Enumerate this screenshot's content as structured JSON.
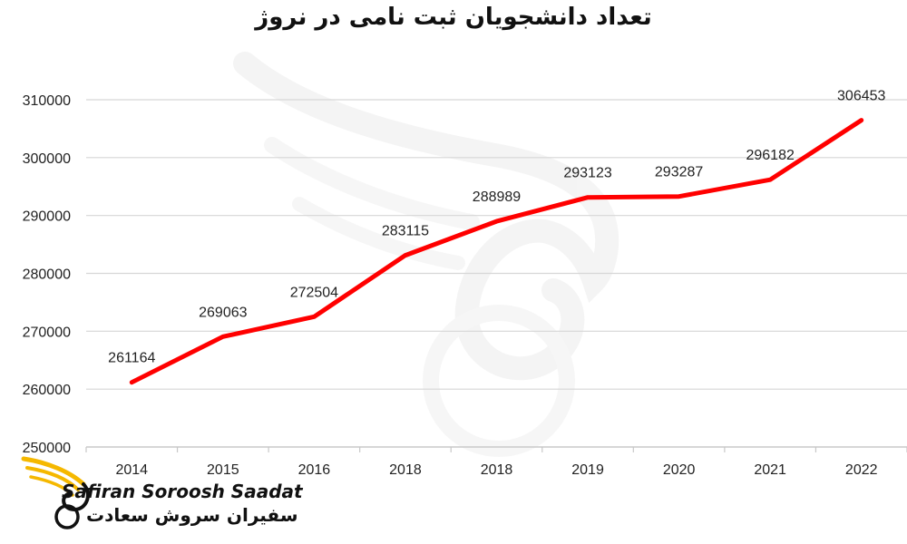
{
  "chart_data": {
    "type": "line",
    "title": "تعداد دانشجویان ثبت نامی در  نروژ",
    "categories": [
      "2014",
      "2015",
      "2016",
      "2018",
      "2018",
      "2019",
      "2020",
      "2021",
      "2022"
    ],
    "series": [
      {
        "values": [
          261164,
          269063,
          272504,
          283115,
          288989,
          293123,
          293287,
          296182,
          306453
        ],
        "color": "#ff0000"
      }
    ],
    "yticks": [
      250000,
      260000,
      270000,
      280000,
      290000,
      300000,
      310000
    ],
    "ylim": [
      250000,
      310000
    ],
    "grid": true,
    "data_labels": true,
    "legend": "none"
  },
  "branding": {
    "name_en": "Safiran Soroosh Saadat",
    "name_fa": "سفیران سروش سعادت",
    "accent_color": "#f5b800",
    "watermark": "swan-logo"
  }
}
